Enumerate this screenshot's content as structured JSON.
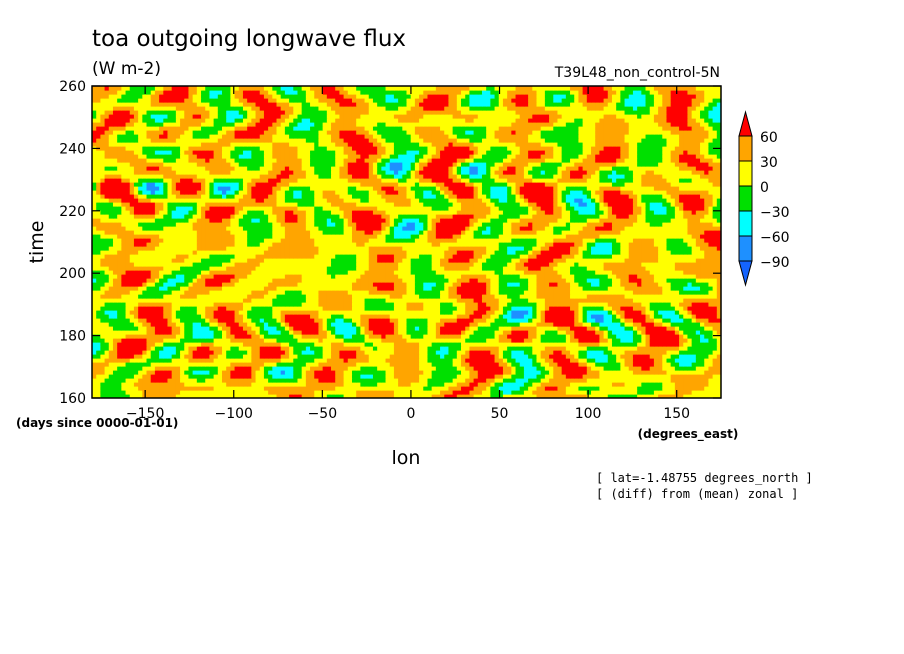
{
  "chart_data": {
    "type": "heatmap",
    "title": "toa outgoing longwave flux",
    "units": "(W m-2)",
    "run_label": "T39L48_non_control-5N",
    "xlabel": "lon",
    "xunits": "(degrees_east)",
    "ylabel": "time",
    "yunits": "(days since 0000-01-01)",
    "xlim": [
      -180,
      175
    ],
    "ylim": [
      160,
      260
    ],
    "xticks": [
      -150,
      -100,
      -50,
      0,
      50,
      100,
      150
    ],
    "yticks": [
      160,
      180,
      200,
      220,
      240,
      260
    ],
    "notes": [
      "[ lat=-1.48755 degrees_north ]",
      "[ (diff) from (mean) zonal ]"
    ],
    "colorbar": {
      "levels": [
        60,
        30,
        0,
        -30,
        -60,
        -90
      ],
      "colors": [
        "#ff0000",
        "#ffa500",
        "#ffff00",
        "#00e000",
        "#00ffff",
        "#1e90ff",
        "#1464ff"
      ]
    }
  }
}
